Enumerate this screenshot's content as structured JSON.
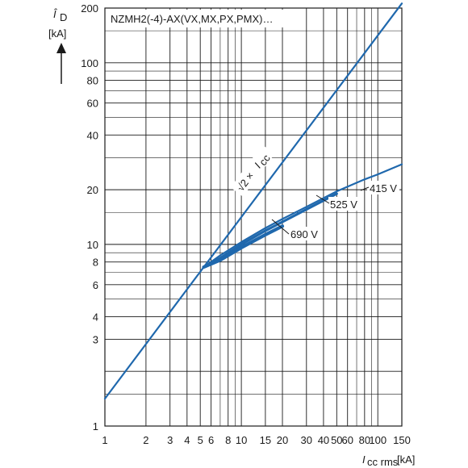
{
  "chart_data": {
    "type": "line",
    "title": "NZMH2(-4)-AX(VX,MX,PX,PMX)…",
    "ylabel": {
      "symbol": "Î",
      "subscript": "D",
      "unit": "[kA]"
    },
    "xlabel": {
      "symbol": "I",
      "subscript": "cc rms",
      "unit": "[kA]"
    },
    "xscale": "log",
    "yscale": "log",
    "xlim": [
      1,
      150
    ],
    "ylim": [
      1,
      200
    ],
    "grid": true,
    "x_ticks": [
      {
        "v": 1,
        "t": "1"
      },
      {
        "v": 2,
        "t": "2"
      },
      {
        "v": 3,
        "t": "3"
      },
      {
        "v": 4,
        "t": "4"
      },
      {
        "v": 5,
        "t": "5"
      },
      {
        "v": 6,
        "t": "6"
      },
      {
        "v": 8,
        "t": "8"
      },
      {
        "v": 10,
        "t": "10"
      },
      {
        "v": 15,
        "t": "15"
      },
      {
        "v": 20,
        "t": "20"
      },
      {
        "v": 30,
        "t": "30"
      },
      {
        "v": 40,
        "t": "40"
      },
      {
        "v": 50,
        "t": "50"
      },
      {
        "v": 60,
        "t": "60"
      },
      {
        "v": 80,
        "t": "80"
      },
      {
        "v": 100,
        "t": "100"
      },
      {
        "v": 150,
        "t": "150"
      }
    ],
    "y_ticks": [
      {
        "v": 1,
        "t": "1"
      },
      {
        "v": 2,
        "t": ""
      },
      {
        "v": 3,
        "t": "3"
      },
      {
        "v": 4,
        "t": "4"
      },
      {
        "v": 6,
        "t": "6"
      },
      {
        "v": 8,
        "t": "8"
      },
      {
        "v": 10,
        "t": "10"
      },
      {
        "v": 20,
        "t": "20"
      },
      {
        "v": 40,
        "t": "40"
      },
      {
        "v": 60,
        "t": "60"
      },
      {
        "v": 80,
        "t": "80"
      },
      {
        "v": 100,
        "t": "100"
      },
      {
        "v": 200,
        "t": "200"
      }
    ],
    "x_grid_minor": [
      7,
      9,
      70,
      90
    ],
    "y_grid_minor": [
      1.5,
      5,
      7,
      9,
      15,
      30,
      50,
      70,
      90,
      150
    ],
    "series": [
      {
        "name": "√2 × Icc",
        "label_parts": [
          "√2 × ",
          "I",
          "cc"
        ],
        "x": [
          1,
          150
        ],
        "y": [
          1.414,
          212
        ]
      },
      {
        "name": "415 V",
        "x": [
          5.3,
          7,
          10,
          15,
          20,
          30,
          50,
          80,
          100,
          150
        ],
        "y": [
          7.5,
          8.7,
          10.3,
          12.3,
          13.8,
          16.1,
          19.6,
          22.8,
          24.3,
          27.6
        ]
      },
      {
        "name": "525 V",
        "x": [
          5.3,
          7,
          10,
          15,
          20,
          30,
          50
        ],
        "y": [
          7.5,
          8.4,
          10.0,
          11.9,
          13.3,
          15.6,
          19.0
        ]
      },
      {
        "name": "690 V",
        "x": [
          5.3,
          7,
          10,
          15,
          20
        ],
        "y": [
          7.5,
          8.2,
          9.6,
          11.3,
          12.6
        ]
      }
    ]
  }
}
